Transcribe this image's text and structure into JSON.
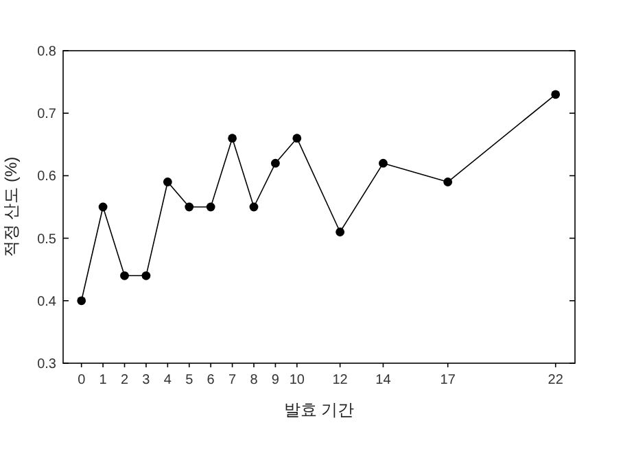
{
  "chart_data": {
    "type": "line",
    "xlabel": "발효 기간",
    "ylabel": "적정 산도 (%)",
    "x": [
      0,
      1,
      2,
      3,
      4,
      5,
      6,
      7,
      8,
      9,
      10,
      12,
      14,
      17,
      22
    ],
    "values": [
      0.4,
      0.55,
      0.44,
      0.44,
      0.59,
      0.55,
      0.55,
      0.66,
      0.55,
      0.62,
      0.66,
      0.51,
      0.62,
      0.59,
      0.73
    ],
    "color": "#000000",
    "marker": "circle",
    "line_style": "solid",
    "xlim": [
      -0.85,
      22.9
    ],
    "xticks": [
      0,
      1,
      2,
      3,
      4,
      5,
      6,
      7,
      8,
      9,
      10,
      12,
      14,
      17,
      22
    ],
    "ylim": [
      0.3,
      0.8
    ],
    "yticks": [
      {
        "value": 0.3,
        "label": "0.3"
      },
      {
        "value": 0.4,
        "label": "0.4"
      },
      {
        "value": 0.5,
        "label": "0.5"
      },
      {
        "value": 0.6,
        "label": "0.6"
      },
      {
        "value": 0.7,
        "label": "0.7"
      },
      {
        "value": 0.8,
        "label": "0.8"
      }
    ]
  }
}
